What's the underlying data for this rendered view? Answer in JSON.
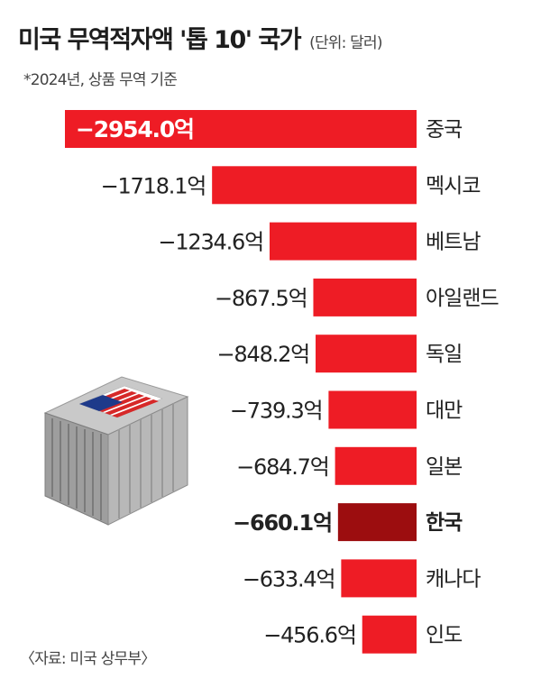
{
  "title": "미국 무역적자액 '톱 10' 국가",
  "unit": "(단위: 달러)",
  "note": "*2024년, 상품 무역 기준",
  "source": "〈자료: 미국 상무부〉",
  "colors": {
    "bar": "#ee1c25",
    "highlight_bar": "#9c0d0f",
    "text": "#222222",
    "highlight_label_text": "#ffffff"
  },
  "chart_data": {
    "type": "bar",
    "orientation": "horizontal",
    "title": "미국 무역적자액 '톱 10' 국가",
    "unit": "(단위: 달러)",
    "value_suffix": "억",
    "categories": [
      "중국",
      "멕시코",
      "베트남",
      "아일랜드",
      "독일",
      "대만",
      "일본",
      "한국",
      "캐나다",
      "인도"
    ],
    "values": [
      -2954.0,
      -1718.1,
      -1234.6,
      -867.5,
      -848.2,
      -739.3,
      -684.7,
      -660.1,
      -633.4,
      -456.6
    ],
    "value_labels": [
      "−2954.0억",
      "−1718.1억",
      "−1234.6억",
      "−867.5억",
      "−848.2억",
      "−739.3억",
      "−684.7억",
      "−660.1억",
      "−633.4억",
      "−456.6억"
    ],
    "highlight": "한국",
    "grid": false,
    "legend": "none"
  }
}
